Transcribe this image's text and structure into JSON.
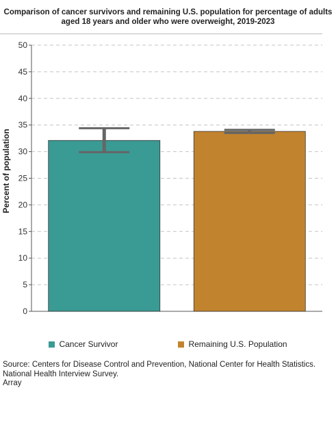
{
  "chart_data": {
    "type": "bar",
    "title": "Comparison of cancer survivors and remaining U.S. population for percentage of adults aged 18 years and older who were overweight, 2019-2023",
    "xlabel": "",
    "ylabel": "Percent of population",
    "ylim": [
      0,
      50
    ],
    "yticks": [
      0,
      5,
      10,
      15,
      20,
      25,
      30,
      35,
      40,
      45,
      50
    ],
    "grid": true,
    "legend_position": "bottom",
    "categories": [
      "Cancer Survivor",
      "Remaining U.S. Population"
    ],
    "values": [
      32.1,
      33.8
    ],
    "error_low": [
      29.9,
      33.5
    ],
    "error_high": [
      34.4,
      34.1
    ],
    "colors": [
      "#3a9a94",
      "#c2832e"
    ],
    "error_bar_color": "#666666"
  },
  "source": {
    "line1": "Source: Centers for Disease Control and Prevention, National Center for Health Statistics. National Health Interview Survey.",
    "line2": "Array"
  }
}
